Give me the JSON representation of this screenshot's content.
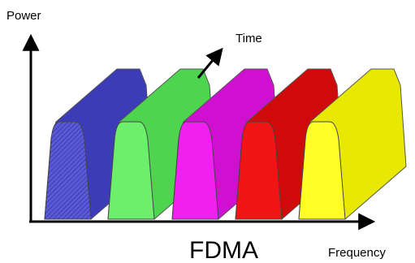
{
  "labels": {
    "y_axis": "Power",
    "time_axis": "Time",
    "title": "FDMA",
    "x_axis": "Frequency"
  }
}
